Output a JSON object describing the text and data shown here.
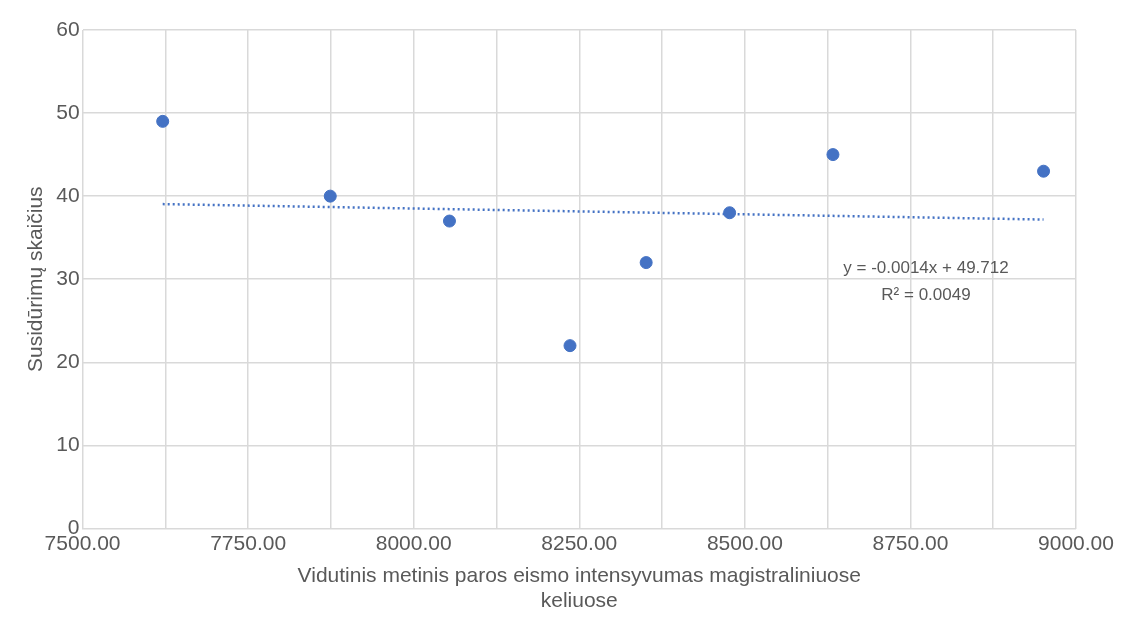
{
  "chart_data": {
    "type": "scatter",
    "xlabel": "Vidutinis metinis paros eismo intensyvumas magistraliniuose keliuose",
    "ylabel": "Susidūrimų skaičius",
    "xlim": [
      7500,
      9000
    ],
    "xticks": [
      {
        "value": 7500,
        "label": "7500.00"
      },
      {
        "value": 7625,
        "label": null
      },
      {
        "value": 7750,
        "label": "7750.00"
      },
      {
        "value": 7875,
        "label": null
      },
      {
        "value": 8000,
        "label": "8000.00"
      },
      {
        "value": 8125,
        "label": null
      },
      {
        "value": 8250,
        "label": "8250.00"
      },
      {
        "value": 8375,
        "label": null
      },
      {
        "value": 8500,
        "label": "8500.00"
      },
      {
        "value": 8625,
        "label": null
      },
      {
        "value": 8750,
        "label": "8750.00"
      },
      {
        "value": 8875,
        "label": null
      },
      {
        "value": 9000,
        "label": "9000.00"
      }
    ],
    "ylim": [
      0,
      60
    ],
    "yticks": [
      0,
      10,
      20,
      30,
      40,
      50,
      60
    ],
    "series": [
      {
        "color": "#4472c4",
        "x": [
          7621,
          7874,
          8054,
          8236,
          8351,
          8477,
          8633,
          8951
        ],
        "values": [
          49,
          40,
          37,
          22,
          32,
          38,
          45,
          43
        ],
        "marker": "circle"
      },
      {
        "type": "line",
        "color": "#4472c4",
        "x": [
          7621,
          8951
        ],
        "values": [
          39.04,
          37.18
        ],
        "line_style": "dotted",
        "marker": "none"
      }
    ],
    "annotations": [
      "y = -0.0014x + 49.712",
      "R² = 0.0049"
    ],
    "grid": true,
    "legend": false
  }
}
